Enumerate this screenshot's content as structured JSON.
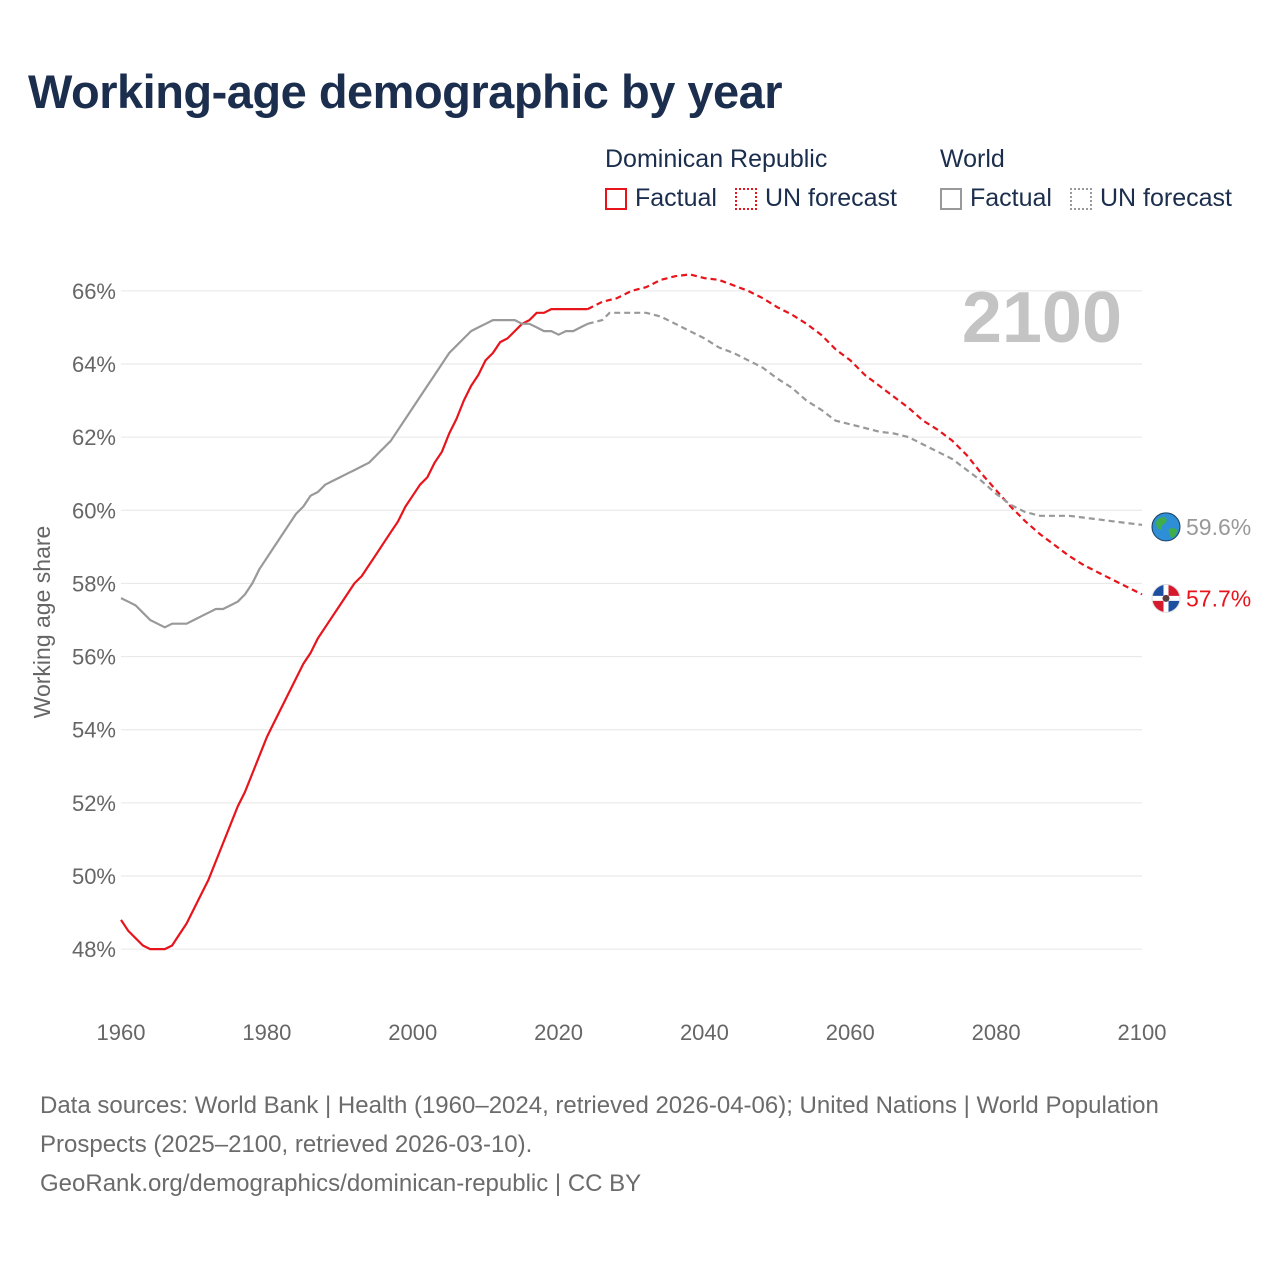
{
  "header": {
    "title": "Working-age demographic by year"
  },
  "legend": {
    "groups": [
      {
        "name": "Dominican Republic",
        "color": "#e8141c",
        "items": [
          {
            "label": "Factual",
            "style": "solid"
          },
          {
            "label": "UN forecast",
            "style": "dotted"
          }
        ]
      },
      {
        "name": "World",
        "color": "#999999",
        "items": [
          {
            "label": "Factual",
            "style": "solid"
          },
          {
            "label": "UN forecast",
            "style": "dotted"
          }
        ]
      }
    ]
  },
  "colors": {
    "dominican": "#e8141c",
    "world": "#999999",
    "year_watermark": "#c4c4c4",
    "grid": "#e6e6e6",
    "axis_text": "#666666"
  },
  "chart_data": {
    "type": "line",
    "year_display": "2100",
    "ylabel": "Working age share",
    "xlabel": "",
    "xlim": [
      1960,
      2100
    ],
    "ylim": [
      46.5,
      67.5
    ],
    "x_ticks": [
      1960,
      1980,
      2000,
      2020,
      2040,
      2060,
      2080,
      2100
    ],
    "x_tick_labels": [
      "1960",
      "1980",
      "2000",
      "2020",
      "2040",
      "2060",
      "2080",
      "2100"
    ],
    "y_ticks": [
      48,
      50,
      52,
      54,
      56,
      58,
      60,
      62,
      64,
      66
    ],
    "y_tick_labels": [
      "48%",
      "50%",
      "52%",
      "54%",
      "56%",
      "58%",
      "60%",
      "62%",
      "64%",
      "66%"
    ],
    "series": [
      {
        "name": "Dominican Republic",
        "segment": "Factual",
        "style": "solid",
        "color": "#e8141c",
        "points": [
          [
            1960,
            48.8
          ],
          [
            1961,
            48.5
          ],
          [
            1962,
            48.3
          ],
          [
            1963,
            48.1
          ],
          [
            1964,
            48.0
          ],
          [
            1965,
            48.0
          ],
          [
            1966,
            48.0
          ],
          [
            1967,
            48.1
          ],
          [
            1968,
            48.4
          ],
          [
            1969,
            48.7
          ],
          [
            1970,
            49.1
          ],
          [
            1971,
            49.5
          ],
          [
            1972,
            49.9
          ],
          [
            1973,
            50.4
          ],
          [
            1974,
            50.9
          ],
          [
            1975,
            51.4
          ],
          [
            1976,
            51.9
          ],
          [
            1977,
            52.3
          ],
          [
            1978,
            52.8
          ],
          [
            1979,
            53.3
          ],
          [
            1980,
            53.8
          ],
          [
            1981,
            54.2
          ],
          [
            1982,
            54.6
          ],
          [
            1983,
            55.0
          ],
          [
            1984,
            55.4
          ],
          [
            1985,
            55.8
          ],
          [
            1986,
            56.1
          ],
          [
            1987,
            56.5
          ],
          [
            1988,
            56.8
          ],
          [
            1989,
            57.1
          ],
          [
            1990,
            57.4
          ],
          [
            1991,
            57.7
          ],
          [
            1992,
            58.0
          ],
          [
            1993,
            58.2
          ],
          [
            1994,
            58.5
          ],
          [
            1995,
            58.8
          ],
          [
            1996,
            59.1
          ],
          [
            1997,
            59.4
          ],
          [
            1998,
            59.7
          ],
          [
            1999,
            60.1
          ],
          [
            2000,
            60.4
          ],
          [
            2001,
            60.7
          ],
          [
            2002,
            60.9
          ],
          [
            2003,
            61.3
          ],
          [
            2004,
            61.6
          ],
          [
            2005,
            62.1
          ],
          [
            2006,
            62.5
          ],
          [
            2007,
            63.0
          ],
          [
            2008,
            63.4
          ],
          [
            2009,
            63.7
          ],
          [
            2010,
            64.1
          ],
          [
            2011,
            64.3
          ],
          [
            2012,
            64.6
          ],
          [
            2013,
            64.7
          ],
          [
            2014,
            64.9
          ],
          [
            2015,
            65.1
          ],
          [
            2016,
            65.2
          ],
          [
            2017,
            65.4
          ],
          [
            2018,
            65.4
          ],
          [
            2019,
            65.5
          ],
          [
            2020,
            65.5
          ],
          [
            2021,
            65.5
          ],
          [
            2022,
            65.5
          ],
          [
            2023,
            65.5
          ],
          [
            2024,
            65.5
          ]
        ]
      },
      {
        "name": "Dominican Republic",
        "segment": "UN forecast",
        "style": "dotted",
        "color": "#e8141c",
        "points": [
          [
            2024,
            65.5
          ],
          [
            2026,
            65.7
          ],
          [
            2028,
            65.8
          ],
          [
            2030,
            66.0
          ],
          [
            2032,
            66.1
          ],
          [
            2034,
            66.3
          ],
          [
            2036,
            66.4
          ],
          [
            2038,
            66.45
          ],
          [
            2040,
            66.35
          ],
          [
            2042,
            66.3
          ],
          [
            2044,
            66.15
          ],
          [
            2046,
            66.0
          ],
          [
            2048,
            65.8
          ],
          [
            2050,
            65.55
          ],
          [
            2052,
            65.35
          ],
          [
            2054,
            65.1
          ],
          [
            2056,
            64.8
          ],
          [
            2058,
            64.4
          ],
          [
            2060,
            64.1
          ],
          [
            2062,
            63.7
          ],
          [
            2064,
            63.4
          ],
          [
            2066,
            63.1
          ],
          [
            2068,
            62.8
          ],
          [
            2070,
            62.45
          ],
          [
            2072,
            62.2
          ],
          [
            2074,
            61.9
          ],
          [
            2076,
            61.5
          ],
          [
            2078,
            61.0
          ],
          [
            2080,
            60.55
          ],
          [
            2082,
            60.1
          ],
          [
            2084,
            59.7
          ],
          [
            2086,
            59.35
          ],
          [
            2088,
            59.05
          ],
          [
            2090,
            58.75
          ],
          [
            2092,
            58.5
          ],
          [
            2094,
            58.3
          ],
          [
            2096,
            58.1
          ],
          [
            2098,
            57.9
          ],
          [
            2100,
            57.7
          ]
        ]
      },
      {
        "name": "World",
        "segment": "Factual",
        "style": "solid",
        "color": "#999999",
        "points": [
          [
            1960,
            57.6
          ],
          [
            1961,
            57.5
          ],
          [
            1962,
            57.4
          ],
          [
            1963,
            57.2
          ],
          [
            1964,
            57.0
          ],
          [
            1965,
            56.9
          ],
          [
            1966,
            56.8
          ],
          [
            1967,
            56.9
          ],
          [
            1968,
            56.9
          ],
          [
            1969,
            56.9
          ],
          [
            1970,
            57.0
          ],
          [
            1971,
            57.1
          ],
          [
            1972,
            57.2
          ],
          [
            1973,
            57.3
          ],
          [
            1974,
            57.3
          ],
          [
            1975,
            57.4
          ],
          [
            1976,
            57.5
          ],
          [
            1977,
            57.7
          ],
          [
            1978,
            58.0
          ],
          [
            1979,
            58.4
          ],
          [
            1980,
            58.7
          ],
          [
            1981,
            59.0
          ],
          [
            1982,
            59.3
          ],
          [
            1983,
            59.6
          ],
          [
            1984,
            59.9
          ],
          [
            1985,
            60.1
          ],
          [
            1986,
            60.4
          ],
          [
            1987,
            60.5
          ],
          [
            1988,
            60.7
          ],
          [
            1989,
            60.8
          ],
          [
            1990,
            60.9
          ],
          [
            1991,
            61.0
          ],
          [
            1992,
            61.1
          ],
          [
            1993,
            61.2
          ],
          [
            1994,
            61.3
          ],
          [
            1995,
            61.5
          ],
          [
            1996,
            61.7
          ],
          [
            1997,
            61.9
          ],
          [
            1998,
            62.2
          ],
          [
            1999,
            62.5
          ],
          [
            2000,
            62.8
          ],
          [
            2001,
            63.1
          ],
          [
            2002,
            63.4
          ],
          [
            2003,
            63.7
          ],
          [
            2004,
            64.0
          ],
          [
            2005,
            64.3
          ],
          [
            2006,
            64.5
          ],
          [
            2007,
            64.7
          ],
          [
            2008,
            64.9
          ],
          [
            2009,
            65.0
          ],
          [
            2010,
            65.1
          ],
          [
            2011,
            65.2
          ],
          [
            2012,
            65.2
          ],
          [
            2013,
            65.2
          ],
          [
            2014,
            65.2
          ],
          [
            2015,
            65.1
          ],
          [
            2016,
            65.1
          ],
          [
            2017,
            65.0
          ],
          [
            2018,
            64.9
          ],
          [
            2019,
            64.9
          ],
          [
            2020,
            64.8
          ],
          [
            2021,
            64.9
          ],
          [
            2022,
            64.9
          ],
          [
            2023,
            65.0
          ],
          [
            2024,
            65.1
          ]
        ]
      },
      {
        "name": "World",
        "segment": "UN forecast",
        "style": "dotted",
        "color": "#999999",
        "points": [
          [
            2024,
            65.1
          ],
          [
            2026,
            65.2
          ],
          [
            2027,
            65.4
          ],
          [
            2029,
            65.4
          ],
          [
            2032,
            65.4
          ],
          [
            2034,
            65.3
          ],
          [
            2036,
            65.1
          ],
          [
            2038,
            64.9
          ],
          [
            2040,
            64.7
          ],
          [
            2042,
            64.45
          ],
          [
            2044,
            64.3
          ],
          [
            2046,
            64.1
          ],
          [
            2048,
            63.9
          ],
          [
            2050,
            63.6
          ],
          [
            2052,
            63.35
          ],
          [
            2054,
            63.0
          ],
          [
            2056,
            62.75
          ],
          [
            2058,
            62.45
          ],
          [
            2060,
            62.35
          ],
          [
            2062,
            62.25
          ],
          [
            2064,
            62.15
          ],
          [
            2066,
            62.1
          ],
          [
            2068,
            62.0
          ],
          [
            2070,
            61.8
          ],
          [
            2072,
            61.6
          ],
          [
            2074,
            61.4
          ],
          [
            2076,
            61.1
          ],
          [
            2078,
            60.8
          ],
          [
            2080,
            60.45
          ],
          [
            2082,
            60.15
          ],
          [
            2084,
            59.95
          ],
          [
            2086,
            59.85
          ],
          [
            2088,
            59.85
          ],
          [
            2090,
            59.85
          ],
          [
            2092,
            59.8
          ],
          [
            2094,
            59.75
          ],
          [
            2096,
            59.7
          ],
          [
            2098,
            59.65
          ],
          [
            2100,
            59.6
          ]
        ]
      }
    ],
    "end_labels": [
      {
        "series": "World",
        "value_label": "59.6%",
        "icon": "globe-icon",
        "color": "#999999",
        "y": 59.6
      },
      {
        "series": "Dominican Republic",
        "value_label": "57.7%",
        "icon": "dominican-flag-icon",
        "color": "#e8141c",
        "y": 57.7
      }
    ]
  },
  "footer": {
    "sources": "Data sources: World Bank | Health (1960–2024, retrieved 2026-04-06); United Nations | World Population Prospects (2025–2100, retrieved 2026-03-10).",
    "attribution": "GeoRank.org/demographics/dominican-republic | CC BY"
  }
}
